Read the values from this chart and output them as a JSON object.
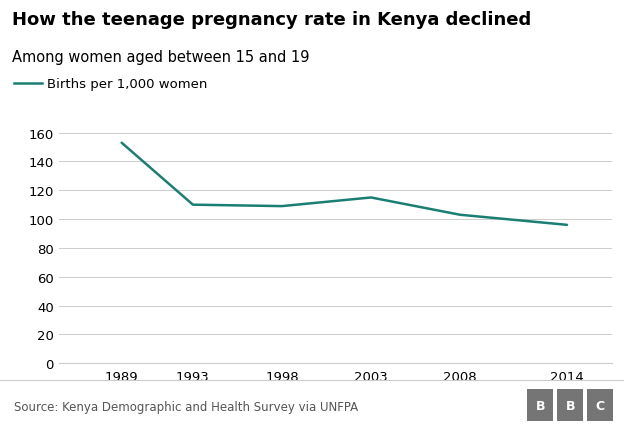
{
  "title": "How the teenage pregnancy rate in Kenya declined",
  "subtitle": "Among women aged between 15 and 19",
  "legend_label": "Births per 1,000 women",
  "source": "Source: Kenya Demographic and Health Survey via UNFPA",
  "years": [
    1989,
    1993,
    1998,
    2003,
    2008,
    2014
  ],
  "values": [
    153,
    110,
    109,
    115,
    103,
    96
  ],
  "line_color": "#1a7f72",
  "background_color": "#ffffff",
  "ylim": [
    0,
    160
  ],
  "yticks": [
    0,
    20,
    40,
    60,
    80,
    100,
    120,
    140,
    160
  ],
  "xtick_labels": [
    "1989",
    "1993",
    "1998",
    "2003",
    "2008",
    "2014"
  ],
  "grid_color": "#cccccc",
  "title_fontsize": 13,
  "subtitle_fontsize": 10.5,
  "tick_fontsize": 9.5,
  "source_fontsize": 8.5,
  "legend_fontsize": 9.5,
  "bbc_box_color": "#757575",
  "bbc_text_color": "#ffffff"
}
